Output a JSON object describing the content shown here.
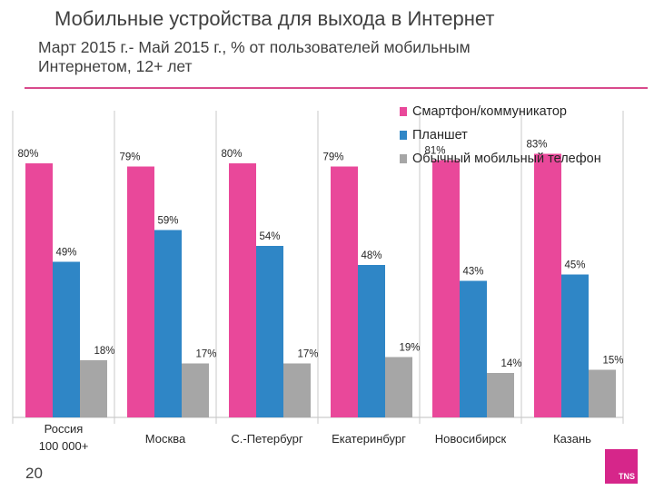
{
  "header": {
    "title": "Мобильные устройства для выхода в Интернет",
    "subtitle_line1": "Март 2015 г.- Май 2015 г., % от пользователей мобильным",
    "subtitle_line2": "Интернетом, 12+ лет"
  },
  "footer": {
    "page_number": "20",
    "logo_text": "TNS"
  },
  "colors": {
    "accent": "#d84a8c",
    "smartphone": "#e9489a",
    "tablet": "#2f86c6",
    "phone": "#a6a6a6"
  },
  "chart_data": {
    "type": "bar",
    "title": "",
    "xlabel": "",
    "ylabel": "",
    "ylim": [
      0,
      100
    ],
    "grid": "vertical separators",
    "legend_position": "top-right",
    "categories": [
      "Россия 100 000+",
      "Москва",
      "С.-Петербург",
      "Екатеринбург",
      "Новосибирск",
      "Казань"
    ],
    "category_lines": [
      [
        "Россия",
        "100 000+"
      ],
      [
        "Москва"
      ],
      [
        "С.-Петербург"
      ],
      [
        "Екатеринбург"
      ],
      [
        "Новосибирск"
      ],
      [
        "Казань"
      ]
    ],
    "series": [
      {
        "name": "Смартфон/коммуникатор",
        "color": "#e9489a",
        "values": [
          80,
          79,
          80,
          79,
          81,
          83
        ],
        "labels": [
          "80%",
          "79%",
          "80%",
          "79%",
          "81%",
          "83%"
        ]
      },
      {
        "name": "Планшет",
        "color": "#2f86c6",
        "values": [
          49,
          59,
          54,
          48,
          43,
          45
        ],
        "labels": [
          "49%",
          "59%",
          "54%",
          "48%",
          "43%",
          "45%"
        ]
      },
      {
        "name": "Обычный мобильный телефон",
        "color": "#a6a6a6",
        "values": [
          18,
          17,
          17,
          19,
          14,
          15
        ],
        "labels": [
          "18%",
          "17%",
          "17%",
          "19%",
          "14%",
          "15%"
        ]
      }
    ]
  }
}
